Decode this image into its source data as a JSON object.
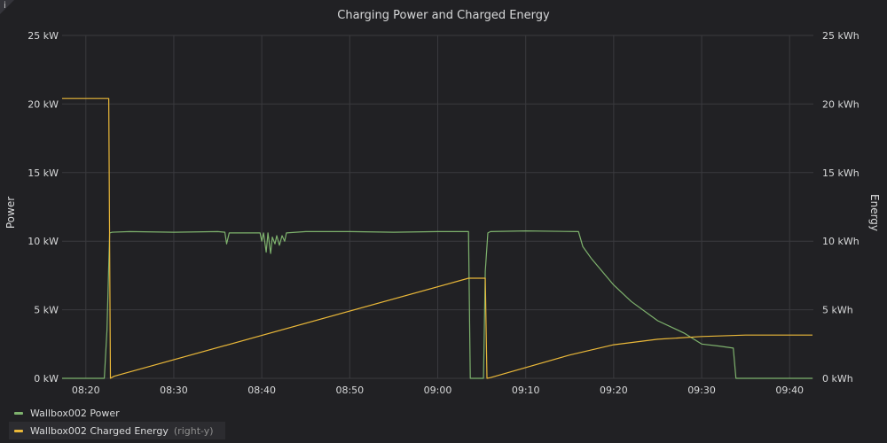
{
  "panel": {
    "info_glyph": "i"
  },
  "chart_data": {
    "type": "line",
    "title": "Charging Power and Charged Energy",
    "x_ticks": [
      "08:20",
      "08:30",
      "08:40",
      "08:50",
      "09:00",
      "09:10",
      "09:20",
      "09:30",
      "09:40"
    ],
    "x_range_minutes": [
      -2.7,
      82.7
    ],
    "y_left": {
      "label": "Power",
      "unit": "kW",
      "range": [
        0,
        25
      ],
      "ticks": [
        "0 kW",
        "5 kW",
        "10 kW",
        "15 kW",
        "20 kW",
        "25 kW"
      ]
    },
    "y_right": {
      "label": "Energy",
      "unit": "kWh",
      "range": [
        0,
        25
      ],
      "ticks": [
        "0 kWh",
        "5 kWh",
        "10 kWh",
        "15 kWh",
        "20 kWh",
        "25 kWh"
      ]
    },
    "grid": true,
    "legend_position": "bottom-left",
    "series": [
      {
        "name": "Wallbox002 Power",
        "axis": "left",
        "color": "#7eb26d",
        "points": [
          [
            "08:17:18",
            0
          ],
          [
            "08:22:06",
            0
          ],
          [
            "08:22:24",
            3.5
          ],
          [
            "08:22:42",
            10.6
          ],
          [
            "08:23:00",
            10.65
          ],
          [
            "08:25:00",
            10.7
          ],
          [
            "08:30:00",
            10.65
          ],
          [
            "08:35:00",
            10.7
          ],
          [
            "08:35:48",
            10.65
          ],
          [
            "08:36:00",
            9.8
          ],
          [
            "08:36:18",
            10.6
          ],
          [
            "08:39:48",
            10.6
          ],
          [
            "08:40:00",
            10.0
          ],
          [
            "08:40:12",
            10.6
          ],
          [
            "08:40:30",
            9.2
          ],
          [
            "08:40:42",
            10.6
          ],
          [
            "08:41:00",
            9.1
          ],
          [
            "08:41:12",
            10.3
          ],
          [
            "08:41:30",
            9.8
          ],
          [
            "08:41:42",
            10.4
          ],
          [
            "08:42:00",
            9.7
          ],
          [
            "08:42:18",
            10.4
          ],
          [
            "08:42:36",
            10.0
          ],
          [
            "08:42:48",
            10.6
          ],
          [
            "08:45:00",
            10.7
          ],
          [
            "08:50:00",
            10.7
          ],
          [
            "08:55:00",
            10.65
          ],
          [
            "09:00:00",
            10.7
          ],
          [
            "09:03:30",
            10.7
          ],
          [
            "09:03:42",
            0
          ],
          [
            "09:05:12",
            0
          ],
          [
            "09:05:24",
            7.8
          ],
          [
            "09:05:42",
            10.6
          ],
          [
            "09:06:00",
            10.7
          ],
          [
            "09:10:00",
            10.75
          ],
          [
            "09:16:00",
            10.7
          ],
          [
            "09:16:30",
            9.6
          ],
          [
            "09:17:30",
            8.7
          ],
          [
            "09:20:00",
            6.8
          ],
          [
            "09:22:00",
            5.6
          ],
          [
            "09:25:00",
            4.2
          ],
          [
            "09:28:00",
            3.3
          ],
          [
            "09:30:00",
            2.5
          ],
          [
            "09:32:00",
            2.35
          ],
          [
            "09:33:36",
            2.2
          ],
          [
            "09:33:54",
            0
          ],
          [
            "09:42:36",
            0
          ]
        ]
      },
      {
        "name": "Wallbox002 Charged Energy",
        "axis": "right",
        "legend_suffix": "(right-y)",
        "color": "#eab839",
        "points": [
          [
            "08:17:18",
            20.4
          ],
          [
            "08:22:36",
            20.4
          ],
          [
            "08:22:48",
            0
          ],
          [
            "08:23:12",
            0.15
          ],
          [
            "09:03:30",
            7.3
          ],
          [
            "09:05:24",
            7.3
          ],
          [
            "09:05:36",
            0
          ],
          [
            "09:06:00",
            0.05
          ],
          [
            "09:15:00",
            1.7
          ],
          [
            "09:20:00",
            2.45
          ],
          [
            "09:25:00",
            2.85
          ],
          [
            "09:30:00",
            3.05
          ],
          [
            "09:35:00",
            3.15
          ],
          [
            "09:42:36",
            3.15
          ]
        ]
      }
    ]
  }
}
